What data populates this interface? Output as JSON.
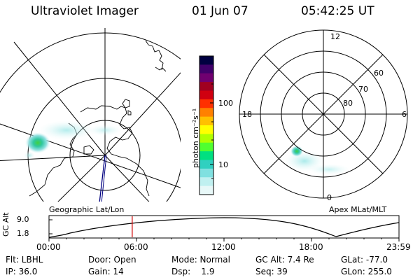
{
  "header": {
    "instrument": "Ultraviolet Imager",
    "date": "01 Jun 07",
    "time": "05:42:25 UT"
  },
  "left_map": {
    "label": "Geographic Lat/Lon"
  },
  "right_map": {
    "label": "Apex MLat/MLT",
    "mlt_labels": {
      "top": "12",
      "left": "18",
      "right": "6",
      "bottom": "0"
    },
    "lat_labels": [
      "60",
      "70",
      "80"
    ]
  },
  "colorbar": {
    "unit_label": "photon cm⁻²s⁻¹",
    "tick_100": "100",
    "tick_10": "10",
    "colors": [
      "#000040",
      "#40006a",
      "#700070",
      "#a00020",
      "#d00010",
      "#ff3000",
      "#ff8000",
      "#ffc000",
      "#ffff00",
      "#b0ff00",
      "#50ff30",
      "#00e080",
      "#30d0c0",
      "#80e0e0",
      "#c0f0f0",
      "#e8f8f8"
    ]
  },
  "altitude_plot": {
    "ylabel": "GC Alt",
    "ytick_top": "9.0",
    "ytick_bottom": "1.8",
    "xticks": [
      "00:00",
      "06:00",
      "12:00",
      "18:00",
      "23:59"
    ],
    "marker_time_hours": 5.707
  },
  "status": {
    "row1": {
      "flt": "Flt: LBHL",
      "door": "Door: Open",
      "mode": "Mode: Normal",
      "gcalt": "GC Alt: 7.4 Re",
      "glat": "GLat: -77.0"
    },
    "row2": {
      "ip": "IP: 36.0",
      "gain": "Gain: 14",
      "dsp": "Dsp:    1.9",
      "seq": "Seq: 39",
      "glon": "GLon: 255.0"
    }
  },
  "colors": {
    "line": "#000000",
    "marker": "#d00000",
    "trace": "#000080"
  }
}
